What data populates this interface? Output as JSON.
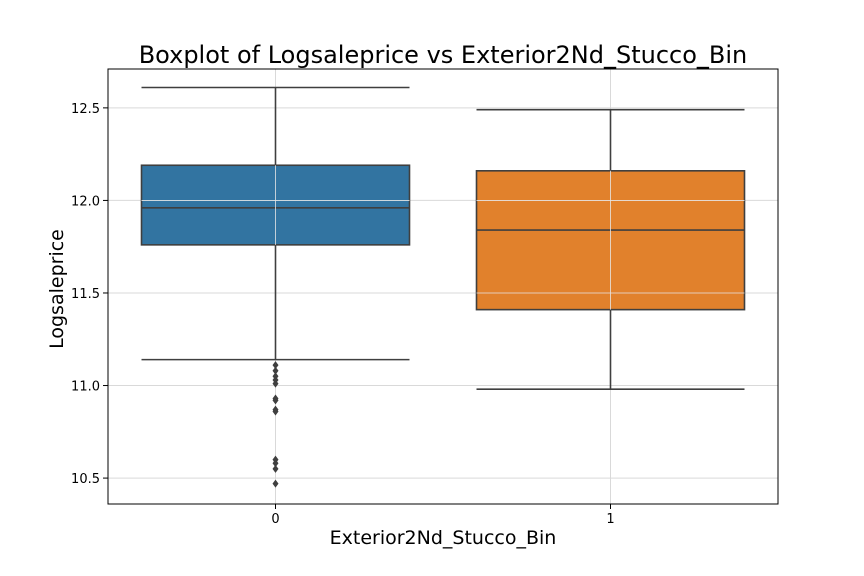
{
  "chart_data": {
    "type": "boxplot",
    "title": "Boxplot of Logsaleprice vs Exterior2Nd_Stucco_Bin",
    "xlabel": "Exterior2Nd_Stucco_Bin",
    "ylabel": "Logsaleprice",
    "ylim": [
      10.36,
      12.71
    ],
    "yticks": [
      10.5,
      11.0,
      11.5,
      12.0,
      12.5
    ],
    "ytick_labels": [
      "10.5",
      "11.0",
      "11.5",
      "12.0",
      "12.5"
    ],
    "grid": true,
    "categories": [
      "0",
      "1"
    ],
    "boxes": [
      {
        "category": "0",
        "color": "#3274a1",
        "whisker_low": 11.14,
        "q1": 11.76,
        "median": 11.96,
        "q3": 12.19,
        "whisker_high": 12.61,
        "outliers": [
          11.11,
          11.08,
          11.05,
          11.03,
          11.01,
          10.93,
          10.92,
          10.87,
          10.86,
          10.6,
          10.58,
          10.55,
          10.47
        ]
      },
      {
        "category": "1",
        "color": "#e1812c",
        "whisker_low": 10.98,
        "q1": 11.41,
        "median": 11.84,
        "q3": 12.16,
        "whisker_high": 12.49,
        "outliers": []
      }
    ]
  }
}
